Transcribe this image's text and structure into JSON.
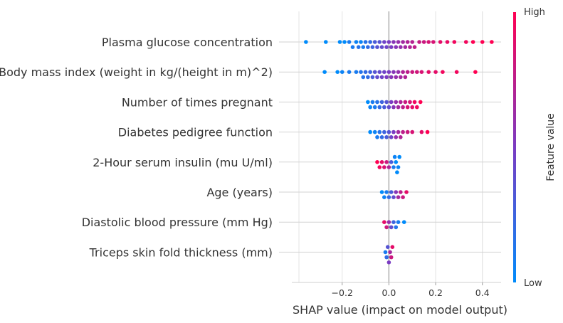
{
  "chart_data": {
    "type": "scatter",
    "subtype": "shap-beeswarm",
    "xlabel": "SHAP value (impact on model output)",
    "xlim": [
      -0.385,
      0.48
    ],
    "xticks": [
      -0.2,
      0.0,
      0.2,
      0.4
    ],
    "xtick_labels": [
      "−0.2",
      "0.0",
      "0.2",
      "0.4"
    ],
    "grid": "vertical-and-row-lines",
    "zero_line": 0,
    "features": [
      "Plasma glucose concentration",
      "Body mass index (weight in kg/(height in m)^2)",
      "Number of times pregnant",
      "Diabetes pedigree function",
      "2-Hour serum insulin (mu U/ml)",
      "Age (years)",
      "Diastolic blood pressure (mm Hg)",
      "Triceps skin fold thickness (mm)"
    ],
    "colorbar": {
      "title": "Feature value",
      "high_label": "High",
      "low_label": "Low",
      "low_color": "#008bfb",
      "mid_color": "#7a3bc2",
      "high_color": "#ff0052"
    },
    "series": [
      {
        "name": "Plasma glucose concentration",
        "points": [
          [
            -0.355,
            0.0
          ],
          [
            -0.27,
            0.0
          ],
          [
            -0.21,
            0.0
          ],
          [
            -0.19,
            0.0
          ],
          [
            -0.17,
            0.1
          ],
          [
            -0.155,
            0.1
          ],
          [
            -0.14,
            0.05
          ],
          [
            -0.13,
            0.15
          ],
          [
            -0.12,
            0.05
          ],
          [
            -0.11,
            0.1
          ],
          [
            -0.1,
            0.15
          ],
          [
            -0.09,
            0.2
          ],
          [
            -0.08,
            0.2
          ],
          [
            -0.07,
            0.25
          ],
          [
            -0.06,
            0.3
          ],
          [
            -0.05,
            0.35
          ],
          [
            -0.04,
            0.35
          ],
          [
            -0.03,
            0.4
          ],
          [
            -0.02,
            0.45
          ],
          [
            -0.01,
            0.45
          ],
          [
            0.0,
            0.5
          ],
          [
            0.01,
            0.5
          ],
          [
            0.02,
            0.55
          ],
          [
            0.03,
            0.55
          ],
          [
            0.04,
            0.6
          ],
          [
            0.05,
            0.6
          ],
          [
            0.06,
            0.65
          ],
          [
            0.07,
            0.65
          ],
          [
            0.08,
            0.7
          ],
          [
            0.09,
            0.7
          ],
          [
            0.1,
            0.72
          ],
          [
            0.11,
            0.75
          ],
          [
            0.13,
            0.78
          ],
          [
            0.15,
            0.8
          ],
          [
            0.17,
            0.85
          ],
          [
            0.19,
            0.85
          ],
          [
            0.22,
            0.9
          ],
          [
            0.25,
            0.92
          ],
          [
            0.28,
            0.95
          ],
          [
            0.33,
            0.95
          ],
          [
            0.36,
            1.0
          ],
          [
            0.4,
            1.0
          ],
          [
            0.44,
            1.0
          ]
        ]
      },
      {
        "name": "Body mass index (weight in kg/(height in m)^2)",
        "points": [
          [
            -0.275,
            0.0
          ],
          [
            -0.22,
            0.0
          ],
          [
            -0.2,
            0.05
          ],
          [
            -0.17,
            0.1
          ],
          [
            -0.14,
            0.1
          ],
          [
            -0.12,
            0.15
          ],
          [
            -0.11,
            0.15
          ],
          [
            -0.1,
            0.2
          ],
          [
            -0.09,
            0.2
          ],
          [
            -0.08,
            0.25
          ],
          [
            -0.07,
            0.3
          ],
          [
            -0.06,
            0.35
          ],
          [
            -0.05,
            0.4
          ],
          [
            -0.04,
            0.4
          ],
          [
            -0.03,
            0.45
          ],
          [
            -0.02,
            0.45
          ],
          [
            -0.01,
            0.5
          ],
          [
            0.0,
            0.5
          ],
          [
            0.01,
            0.55
          ],
          [
            0.02,
            0.55
          ],
          [
            0.03,
            0.6
          ],
          [
            0.04,
            0.6
          ],
          [
            0.05,
            0.65
          ],
          [
            0.06,
            0.7
          ],
          [
            0.07,
            0.7
          ],
          [
            0.08,
            0.75
          ],
          [
            0.1,
            0.8
          ],
          [
            0.12,
            0.82
          ],
          [
            0.14,
            0.85
          ],
          [
            0.17,
            0.9
          ],
          [
            0.2,
            0.9
          ],
          [
            0.23,
            0.95
          ],
          [
            0.29,
            0.95
          ],
          [
            0.37,
            1.0
          ]
        ]
      },
      {
        "name": "Number of times pregnant",
        "points": [
          [
            -0.09,
            0.0
          ],
          [
            -0.08,
            0.05
          ],
          [
            -0.07,
            0.1
          ],
          [
            -0.06,
            0.1
          ],
          [
            -0.05,
            0.15
          ],
          [
            -0.04,
            0.2
          ],
          [
            -0.03,
            0.25
          ],
          [
            -0.02,
            0.3
          ],
          [
            -0.01,
            0.35
          ],
          [
            0.0,
            0.4
          ],
          [
            0.01,
            0.5
          ],
          [
            0.02,
            0.55
          ],
          [
            0.03,
            0.6
          ],
          [
            0.04,
            0.65
          ],
          [
            0.05,
            0.7
          ],
          [
            0.06,
            0.75
          ],
          [
            0.07,
            0.8
          ],
          [
            0.08,
            0.85
          ],
          [
            0.09,
            0.85
          ],
          [
            0.1,
            0.9
          ],
          [
            0.11,
            0.95
          ],
          [
            0.12,
            0.95
          ],
          [
            0.135,
            1.0
          ]
        ]
      },
      {
        "name": "Diabetes pedigree function",
        "points": [
          [
            -0.08,
            0.0
          ],
          [
            -0.06,
            0.05
          ],
          [
            -0.05,
            0.1
          ],
          [
            -0.04,
            0.15
          ],
          [
            -0.03,
            0.2
          ],
          [
            -0.02,
            0.25
          ],
          [
            -0.01,
            0.3
          ],
          [
            0.0,
            0.35
          ],
          [
            0.01,
            0.45
          ],
          [
            0.02,
            0.5
          ],
          [
            0.03,
            0.6
          ],
          [
            0.04,
            0.65
          ],
          [
            0.05,
            0.7
          ],
          [
            0.06,
            0.75
          ],
          [
            0.08,
            0.8
          ],
          [
            0.1,
            0.85
          ],
          [
            0.14,
            0.9
          ],
          [
            0.165,
            1.0
          ]
        ]
      },
      {
        "name": "2-Hour serum insulin (mu U/ml)",
        "points": [
          [
            -0.05,
            1.0
          ],
          [
            -0.04,
            0.95
          ],
          [
            -0.03,
            0.9
          ],
          [
            -0.02,
            0.85
          ],
          [
            -0.01,
            0.8
          ],
          [
            0.0,
            0.7
          ],
          [
            0.01,
            0.3
          ],
          [
            0.02,
            0.1
          ],
          [
            0.025,
            0.05
          ],
          [
            0.03,
            0.0
          ],
          [
            0.035,
            0.0
          ],
          [
            0.04,
            0.05
          ],
          [
            0.045,
            0.0
          ]
        ]
      },
      {
        "name": "Age (years)",
        "points": [
          [
            -0.03,
            0.0
          ],
          [
            -0.02,
            0.05
          ],
          [
            -0.01,
            0.1
          ],
          [
            0.0,
            0.2
          ],
          [
            0.01,
            0.3
          ],
          [
            0.02,
            0.4
          ],
          [
            0.03,
            0.55
          ],
          [
            0.04,
            0.65
          ],
          [
            0.05,
            0.75
          ],
          [
            0.06,
            0.8
          ],
          [
            0.075,
            0.9
          ]
        ]
      },
      {
        "name": "Diastolic blood pressure (mm Hg)",
        "points": [
          [
            -0.02,
            0.9
          ],
          [
            -0.01,
            0.8
          ],
          [
            0.0,
            0.6
          ],
          [
            0.01,
            0.4
          ],
          [
            0.02,
            0.25
          ],
          [
            0.03,
            0.15
          ],
          [
            0.04,
            0.1
          ],
          [
            0.065,
            0.0
          ]
        ]
      },
      {
        "name": "Triceps skin fold thickness (mm)",
        "points": [
          [
            -0.015,
            0.1
          ],
          [
            -0.01,
            0.2
          ],
          [
            -0.005,
            0.35
          ],
          [
            0.0,
            0.5
          ],
          [
            0.005,
            0.65
          ],
          [
            0.01,
            0.8
          ],
          [
            0.015,
            0.9
          ]
        ]
      }
    ]
  }
}
